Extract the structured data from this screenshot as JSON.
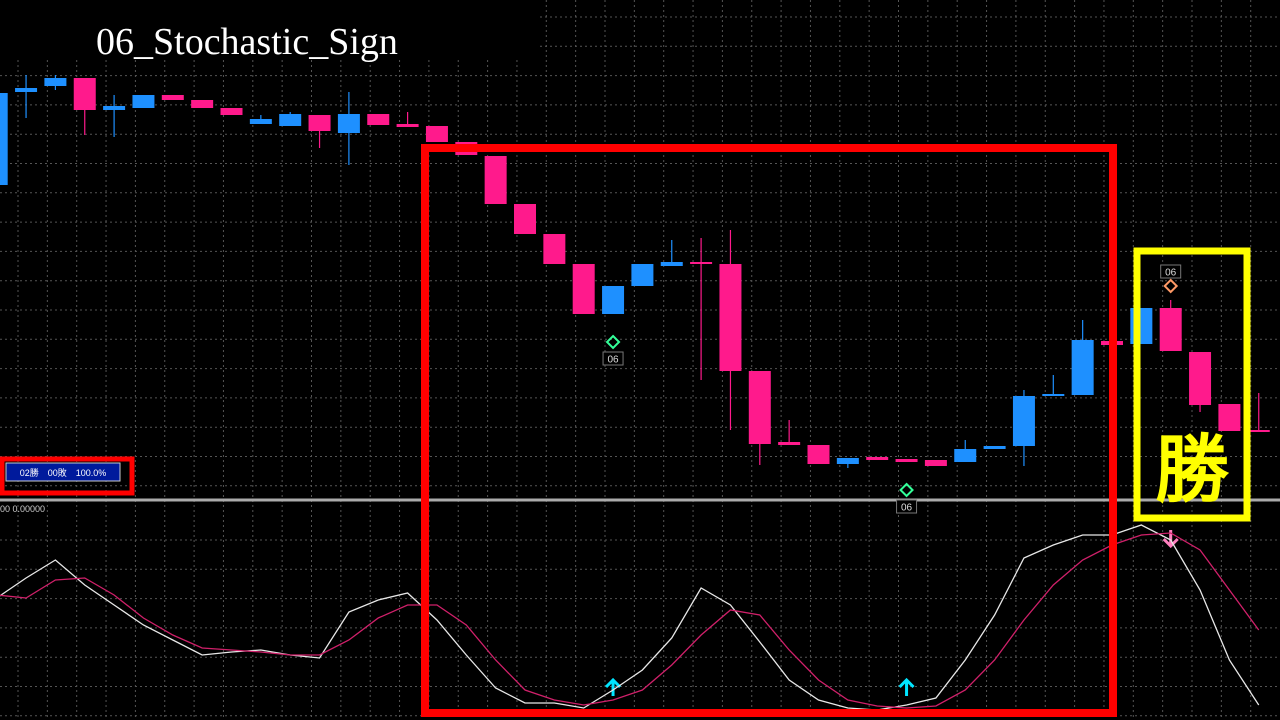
{
  "title": "06_Stochastic_Sign",
  "stats_panel": "02勝　00敗　100.0%",
  "indicator_label": "00 0.00000",
  "result_label": "勝",
  "chart_data": [
    {
      "type": "candlestick",
      "ylim": [
        0,
        500
      ],
      "up_color": "#1e90ff",
      "down_color": "#ff1a8c",
      "grid": true,
      "open": [
        315,
        408,
        414,
        422,
        390,
        392,
        405,
        400,
        392,
        376,
        374,
        385,
        367,
        386,
        376,
        374,
        358,
        344,
        296,
        266,
        236,
        186,
        214,
        234,
        238,
        236,
        129,
        58,
        55,
        36,
        43,
        41,
        40,
        38,
        51,
        54,
        104,
        105,
        159,
        156,
        192,
        148,
        96,
        70
      ],
      "high": [
        407,
        425,
        425,
        422,
        405,
        405,
        405,
        400,
        392,
        385,
        388,
        385,
        408,
        386,
        388,
        374,
        358,
        344,
        296,
        266,
        236,
        214,
        236,
        260,
        262,
        270,
        129,
        80,
        55,
        42,
        43,
        41,
        40,
        60,
        54,
        110,
        125,
        180,
        159,
        192,
        200,
        148,
        96,
        107
      ],
      "low": [
        315,
        382,
        410,
        365,
        363,
        392,
        400,
        392,
        385,
        376,
        374,
        352,
        335,
        375,
        373,
        358,
        345,
        296,
        266,
        236,
        186,
        186,
        214,
        234,
        120,
        70,
        35,
        55,
        36,
        32,
        40,
        38,
        34,
        38,
        51,
        34,
        104,
        105,
        155,
        156,
        149,
        88,
        69,
        69
      ],
      "close": [
        407,
        412,
        422,
        390,
        394,
        405,
        400,
        392,
        385,
        381,
        386,
        369,
        386,
        375,
        373,
        358,
        345,
        296,
        266,
        236,
        186,
        214,
        236,
        238,
        236,
        129,
        56,
        55,
        36,
        42,
        40,
        38,
        34,
        51,
        54,
        104,
        106,
        160,
        155,
        192,
        149,
        95,
        69,
        69
      ],
      "signals": [
        {
          "index": 21,
          "direction": "up",
          "label": "06"
        },
        {
          "index": 31,
          "direction": "up",
          "label": "06"
        },
        {
          "index": 40,
          "direction": "down",
          "label": "06"
        }
      ]
    },
    {
      "type": "line",
      "ylim": [
        0,
        100
      ],
      "series": [
        {
          "color": "#e8e8e8",
          "values": [
            56,
            66,
            75,
            62.5,
            52.5,
            42.5,
            35,
            27.5,
            29,
            30,
            27.5,
            26,
            49,
            55,
            58.5,
            45,
            27.5,
            11,
            3.5,
            3.5,
            1,
            10,
            20,
            36,
            61,
            52.5,
            34,
            15,
            5,
            1,
            0,
            2.5,
            6,
            25,
            47.5,
            76,
            82.5,
            87.5,
            87.5,
            92.5,
            85,
            60,
            25,
            2.5
          ]
        },
        {
          "color": "#d0206a",
          "values": [
            57.5,
            56,
            65,
            66,
            57.5,
            46,
            37.5,
            31,
            30,
            29,
            27.5,
            27.5,
            35,
            46,
            52.5,
            52.5,
            42.5,
            25,
            10,
            5,
            2.5,
            5,
            10,
            22.5,
            37.5,
            50,
            47.5,
            30,
            15,
            5,
            2,
            1,
            2,
            10,
            25,
            45,
            62.5,
            75,
            82.5,
            87.5,
            88.5,
            80,
            60,
            40
          ]
        }
      ]
    }
  ]
}
